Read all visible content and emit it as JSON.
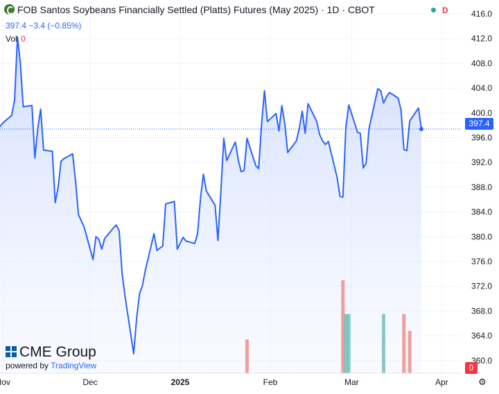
{
  "header": {
    "title": "FOB Santos Soybeans Financially Settled (Platts) Futures (May 2025) · 1D · CBOT",
    "status_badge": "D",
    "quote": "397.4  −3.4 (−0.85%)",
    "volume_label": "Vol",
    "volume_value": "0"
  },
  "branding": {
    "cme": "CME Group",
    "powered_by": "powered by",
    "tradingview": "TradingView"
  },
  "colors": {
    "line": "#2962ff",
    "area_top": "#c9d8ff",
    "volume_up": "#26a69a",
    "volume_down": "#ef5350",
    "last_price": "#2962ff",
    "volume_badge": "#f23645"
  },
  "icons": {
    "settings": "gear-icon",
    "instrument": "cme-logo-icon"
  },
  "chart_data": {
    "type": "area",
    "title": "FOB Santos Soybeans Financially Settled (Platts) Futures (May 2025) · 1D · CBOT",
    "y_range": [
      358,
      418
    ],
    "y_ticks": [
      "416.0",
      "412.0",
      "408.0",
      "404.0",
      "400.0",
      "396.0",
      "392.0",
      "388.0",
      "384.0",
      "380.0",
      "376.0",
      "372.0",
      "368.0",
      "364.0",
      "360.0"
    ],
    "x_tick_labels": [
      "Nov",
      "Dec",
      "2025",
      "Feb",
      "Mar",
      "Apr"
    ],
    "x_tick_dates": [
      "2024-11-01",
      "2024-12-01",
      "2025-01-01",
      "2025-02-01",
      "2025-03-01",
      "2025-04-01"
    ],
    "last_price": 397.4,
    "last_price_label": "397.4",
    "volume_axis_label": "0",
    "series": [
      {
        "values": [
          [
            "2024-10-31",
            397.8
          ],
          [
            "2024-11-01",
            398.4
          ],
          [
            "2024-11-04",
            399.6
          ],
          [
            "2024-11-05",
            402.0
          ],
          [
            "2024-11-06",
            412.3
          ],
          [
            "2024-11-07",
            408.0
          ],
          [
            "2024-11-08",
            401.0
          ],
          [
            "2024-11-11",
            401.2
          ],
          [
            "2024-11-12",
            392.7
          ],
          [
            "2024-11-13",
            397.5
          ],
          [
            "2024-11-14",
            400.6
          ],
          [
            "2024-11-15",
            394.0
          ],
          [
            "2024-11-18",
            393.8
          ],
          [
            "2024-11-19",
            385.5
          ],
          [
            "2024-11-20",
            388.0
          ],
          [
            "2024-11-21",
            392.2
          ],
          [
            "2024-11-22",
            392.6
          ],
          [
            "2024-11-25",
            393.4
          ],
          [
            "2024-11-26",
            389.0
          ],
          [
            "2024-11-27",
            383.6
          ],
          [
            "2024-11-29",
            381.5
          ],
          [
            "2024-12-02",
            376.3
          ],
          [
            "2024-12-03",
            380.0
          ],
          [
            "2024-12-04",
            379.6
          ],
          [
            "2024-12-05",
            378.0
          ],
          [
            "2024-12-06",
            379.7
          ],
          [
            "2024-12-09",
            381.4
          ],
          [
            "2024-12-10",
            381.9
          ],
          [
            "2024-12-11",
            381.0
          ],
          [
            "2024-12-12",
            374.2
          ],
          [
            "2024-12-13",
            370.5
          ],
          [
            "2024-12-16",
            361.1
          ],
          [
            "2024-12-17",
            366.8
          ],
          [
            "2024-12-18",
            370.8
          ],
          [
            "2024-12-19",
            372.1
          ],
          [
            "2024-12-20",
            374.6
          ],
          [
            "2024-12-23",
            380.5
          ],
          [
            "2024-12-24",
            377.8
          ],
          [
            "2024-12-26",
            378.5
          ],
          [
            "2024-12-27",
            385.3
          ],
          [
            "2024-12-30",
            385.7
          ],
          [
            "2024-12-31",
            378.0
          ],
          [
            "2025-01-02",
            379.9
          ],
          [
            "2025-01-03",
            379.3
          ],
          [
            "2025-01-06",
            378.9
          ],
          [
            "2025-01-07",
            380.5
          ],
          [
            "2025-01-08",
            386.2
          ],
          [
            "2025-01-09",
            390.1
          ],
          [
            "2025-01-10",
            387.4
          ],
          [
            "2025-01-13",
            385.1
          ],
          [
            "2025-01-14",
            379.4
          ],
          [
            "2025-01-15",
            387.3
          ],
          [
            "2025-01-16",
            395.9
          ],
          [
            "2025-01-17",
            392.3
          ],
          [
            "2025-01-20",
            395.3
          ],
          [
            "2025-01-21",
            392.4
          ],
          [
            "2025-01-22",
            390.5
          ],
          [
            "2025-01-23",
            390.7
          ],
          [
            "2025-01-24",
            395.9
          ],
          [
            "2025-01-27",
            391.5
          ],
          [
            "2025-01-28",
            391.0
          ],
          [
            "2025-01-29",
            398.2
          ],
          [
            "2025-01-30",
            403.6
          ],
          [
            "2025-01-31",
            398.6
          ],
          [
            "2025-02-03",
            399.9
          ],
          [
            "2025-02-04",
            397.1
          ],
          [
            "2025-02-05",
            401.2
          ],
          [
            "2025-02-06",
            398.3
          ],
          [
            "2025-02-07",
            393.6
          ],
          [
            "2025-02-10",
            395.5
          ],
          [
            "2025-02-11",
            397.5
          ],
          [
            "2025-02-12",
            400.3
          ],
          [
            "2025-02-13",
            396.7
          ],
          [
            "2025-02-14",
            401.5
          ],
          [
            "2025-02-17",
            398.6
          ],
          [
            "2025-02-18",
            396.5
          ],
          [
            "2025-02-19",
            395.5
          ],
          [
            "2025-02-20",
            394.9
          ],
          [
            "2025-02-21",
            395.4
          ],
          [
            "2025-02-24",
            389.6
          ],
          [
            "2025-02-25",
            386.5
          ],
          [
            "2025-02-26",
            386.4
          ],
          [
            "2025-02-27",
            397.6
          ],
          [
            "2025-02-28",
            401.3
          ],
          [
            "2025-03-03",
            396.9
          ],
          [
            "2025-03-04",
            396.7
          ],
          [
            "2025-03-05",
            391.1
          ],
          [
            "2025-03-06",
            391.9
          ],
          [
            "2025-03-07",
            397.5
          ],
          [
            "2025-03-10",
            403.9
          ],
          [
            "2025-03-11",
            403.6
          ],
          [
            "2025-03-12",
            401.6
          ],
          [
            "2025-03-13",
            402.6
          ],
          [
            "2025-03-14",
            403.3
          ],
          [
            "2025-03-17",
            402.4
          ],
          [
            "2025-03-18",
            400.5
          ],
          [
            "2025-03-19",
            394.1
          ],
          [
            "2025-03-20",
            393.9
          ],
          [
            "2025-03-21",
            398.7
          ],
          [
            "2025-03-24",
            400.8
          ],
          [
            "2025-03-25",
            397.4
          ]
        ]
      }
    ],
    "volume": [
      [
        "2025-01-24",
        4,
        "down"
      ],
      [
        "2025-02-26",
        11,
        "down"
      ],
      [
        "2025-02-27",
        7,
        "up"
      ],
      [
        "2025-02-28",
        7,
        "up"
      ],
      [
        "2025-03-12",
        7,
        "up"
      ],
      [
        "2025-03-19",
        7,
        "down"
      ],
      [
        "2025-03-21",
        5,
        "down"
      ]
    ],
    "volume_max": 11,
    "grid": true,
    "legend": "none"
  }
}
